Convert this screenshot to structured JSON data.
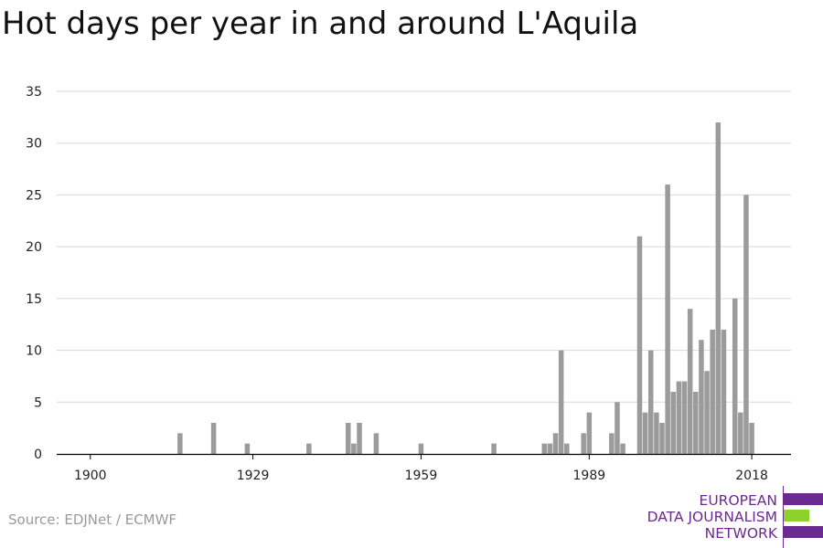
{
  "title": "Hot days per year in and around L'Aquila",
  "source": "Source: EDJNet / ECMWF",
  "logo": {
    "lines": [
      "EUROPEAN",
      "DATA JOURNALISM",
      "NETWORK"
    ],
    "colors": {
      "text": "#6b2a8f",
      "purple": "#6b2a8f",
      "green": "#8dd12a"
    }
  },
  "colors": {
    "bar": "#9b9b9b",
    "grid": "#d8d8d8",
    "axis": "#000000"
  },
  "chart_data": {
    "type": "bar",
    "title": "Hot days per year in and around L'Aquila",
    "xlabel": "",
    "ylabel": "",
    "x_ticks": [
      1900,
      1929,
      1959,
      1989,
      2018
    ],
    "y_ticks": [
      0,
      5,
      10,
      15,
      20,
      25,
      30,
      35
    ],
    "xlim": [
      1894,
      2025
    ],
    "ylim": [
      0,
      35
    ],
    "grid": true,
    "series": [
      {
        "points": [
          {
            "x": 1916,
            "y": 2
          },
          {
            "x": 1922,
            "y": 3
          },
          {
            "x": 1928,
            "y": 1
          },
          {
            "x": 1939,
            "y": 1
          },
          {
            "x": 1946,
            "y": 3
          },
          {
            "x": 1947,
            "y": 1
          },
          {
            "x": 1948,
            "y": 3
          },
          {
            "x": 1951,
            "y": 2
          },
          {
            "x": 1959,
            "y": 1
          },
          {
            "x": 1972,
            "y": 1
          },
          {
            "x": 1981,
            "y": 1
          },
          {
            "x": 1982,
            "y": 1
          },
          {
            "x": 1983,
            "y": 2
          },
          {
            "x": 1984,
            "y": 10
          },
          {
            "x": 1985,
            "y": 1
          },
          {
            "x": 1988,
            "y": 2
          },
          {
            "x": 1989,
            "y": 4
          },
          {
            "x": 1993,
            "y": 2
          },
          {
            "x": 1994,
            "y": 5
          },
          {
            "x": 1995,
            "y": 1
          },
          {
            "x": 1998,
            "y": 21
          },
          {
            "x": 1999,
            "y": 4
          },
          {
            "x": 2000,
            "y": 10
          },
          {
            "x": 2001,
            "y": 4
          },
          {
            "x": 2002,
            "y": 3
          },
          {
            "x": 2003,
            "y": 26
          },
          {
            "x": 2004,
            "y": 6
          },
          {
            "x": 2005,
            "y": 7
          },
          {
            "x": 2006,
            "y": 7
          },
          {
            "x": 2007,
            "y": 14
          },
          {
            "x": 2008,
            "y": 6
          },
          {
            "x": 2009,
            "y": 11
          },
          {
            "x": 2010,
            "y": 8
          },
          {
            "x": 2011,
            "y": 12
          },
          {
            "x": 2012,
            "y": 32
          },
          {
            "x": 2013,
            "y": 12
          },
          {
            "x": 2015,
            "y": 15
          },
          {
            "x": 2016,
            "y": 4
          },
          {
            "x": 2017,
            "y": 25
          },
          {
            "x": 2018,
            "y": 3
          }
        ]
      }
    ]
  }
}
